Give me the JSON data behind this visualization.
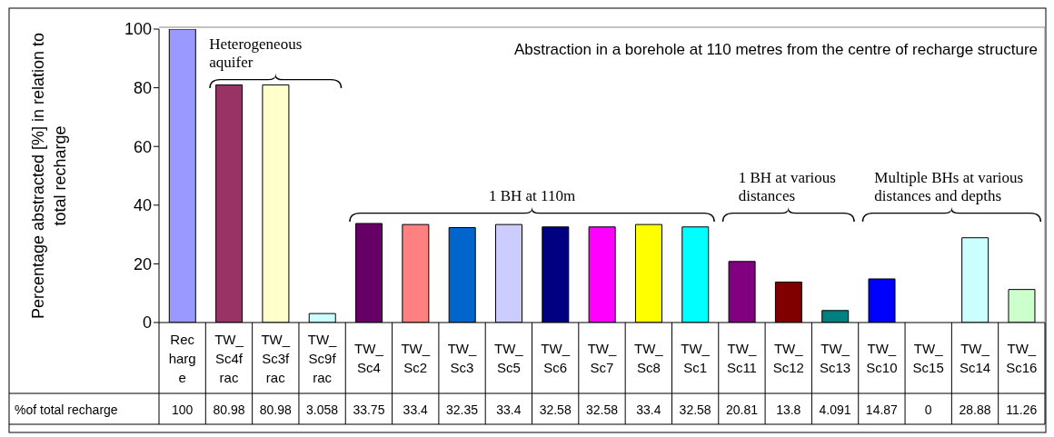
{
  "chart_data": {
    "type": "bar",
    "title": "Abstraction in a borehole at 110 metres from the centre of recharge structure",
    "ylabel": "Percentage abstracted [%] in relation to total recharge",
    "categories": [
      "Recharge",
      "TW_Sc4frac",
      "TW_Sc3frac",
      "TW_Sc9frac",
      "TW_Sc4",
      "TW_Sc2",
      "TW_Sc3",
      "TW_Sc5",
      "TW_Sc6",
      "TW_Sc7",
      "TW_Sc8",
      "TW_Sc1",
      "TW_Sc11",
      "TW_Sc12",
      "TW_Sc13",
      "TW_Sc10",
      "TW_Sc15",
      "TW_Sc14",
      "TW_Sc16"
    ],
    "series": [
      {
        "name": "%of total recharge",
        "values": [
          100,
          80.98,
          80.98,
          3.058,
          33.75,
          33.4,
          32.35,
          33.4,
          32.58,
          32.58,
          33.4,
          32.58,
          20.81,
          13.8,
          4.091,
          14.87,
          0,
          28.88,
          11.26
        ],
        "colors": [
          "#9999ff",
          "#993366",
          "#ffffcc",
          "#ccffff",
          "#660066",
          "#ff8080",
          "#0066cc",
          "#ccccff",
          "#000080",
          "#ff00ff",
          "#ffff00",
          "#00ffff",
          "#800080",
          "#800000",
          "#008080",
          "#0000ff",
          "#ffffff",
          "#ccffff",
          "#ccffcc"
        ]
      }
    ],
    "value_labels": [
      "100",
      "80.98",
      "80.98",
      "3.058",
      "33.75",
      "33.4",
      "32.35",
      "33.4",
      "32.58",
      "32.58",
      "33.4",
      "32.58",
      "20.81",
      "13.8",
      "4.091",
      "14.87",
      "0",
      "28.88",
      "11.26"
    ],
    "ylim": [
      0,
      100
    ],
    "yticks": [
      0,
      20,
      40,
      60,
      80,
      100
    ],
    "annotations": [
      "Heterogeneous aquifer",
      "1 BH at 110m",
      "1 BH at various distances",
      "Multiple BHs at various distances and depths"
    ]
  }
}
